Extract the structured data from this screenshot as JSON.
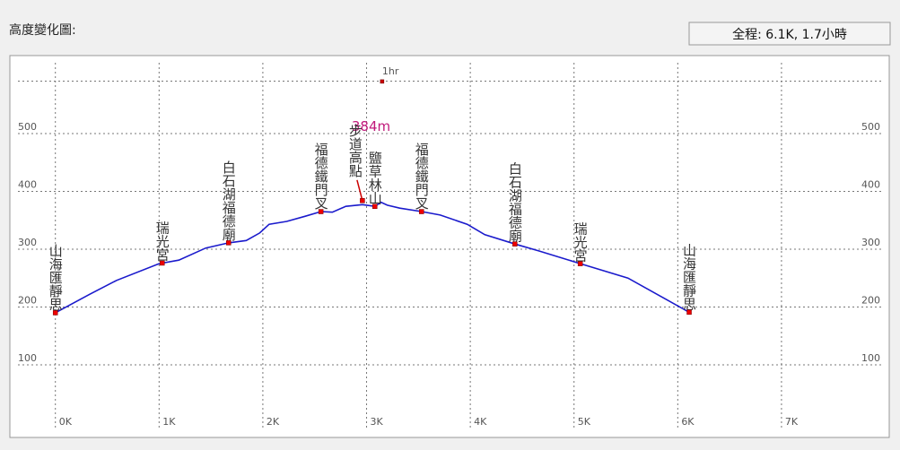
{
  "header": "高度變化圖:",
  "summary": "全程: 6.1K, 1.7小時",
  "chart_data": {
    "type": "line",
    "color": "#1a1acc",
    "grid": true,
    "x": [
      0,
      0.33,
      0.59,
      1.0,
      1.19,
      1.45,
      1.67,
      1.84,
      1.97,
      2.06,
      2.23,
      2.41,
      2.56,
      2.67,
      2.8,
      2.96,
      3.08,
      3.14,
      3.2,
      3.32,
      3.53,
      3.71,
      3.97,
      4.14,
      4.43,
      4.66,
      5.06,
      5.52,
      5.87,
      6.11
    ],
    "values": [
      190,
      222,
      246,
      275,
      281,
      302,
      311,
      315,
      328,
      343,
      348,
      357,
      365,
      364,
      374,
      377,
      374,
      381,
      376,
      371,
      365,
      359,
      343,
      325,
      309,
      297,
      275,
      250,
      215,
      191
    ],
    "xlim": [
      -0.43,
      8.03
    ],
    "ylim": [
      0,
      590
    ],
    "xticks": [
      {
        "value": 0,
        "label": "0K"
      },
      {
        "value": 1,
        "label": "1K"
      },
      {
        "value": 2,
        "label": "2K"
      },
      {
        "value": 3,
        "label": "3K"
      },
      {
        "value": 4,
        "label": "4K"
      },
      {
        "value": 5,
        "label": "5K"
      },
      {
        "value": 6,
        "label": "6K"
      },
      {
        "value": 7,
        "label": "7K"
      }
    ],
    "yticks": [
      100,
      200,
      300,
      400,
      500
    ],
    "waypoints": [
      {
        "name": "山海匯靜思",
        "x": 0,
        "elevation": 190
      },
      {
        "name": "瑞光宮",
        "x": 1.03,
        "elevation": 276
      },
      {
        "name": "白石湖福德廟",
        "x": 1.67,
        "elevation": 311
      },
      {
        "name": "福德鐵門叉",
        "x": 2.56,
        "elevation": 365
      },
      {
        "name": "步道高點",
        "x": 2.96,
        "elevation": 384,
        "label": "384m"
      },
      {
        "name": "鹽草林山",
        "x": 3.08,
        "elevation": 374
      },
      {
        "name": "福德鐵門叉",
        "x": 3.53,
        "elevation": 365
      },
      {
        "name": "白石湖福德廟",
        "x": 4.43,
        "elevation": 309
      },
      {
        "name": "瑞光宮",
        "x": 5.06,
        "elevation": 275
      },
      {
        "name": "山海匯靜思",
        "x": 6.11,
        "elevation": 191
      }
    ],
    "time_marks": [
      {
        "x": 3.15,
        "label": "1hr"
      }
    ]
  }
}
